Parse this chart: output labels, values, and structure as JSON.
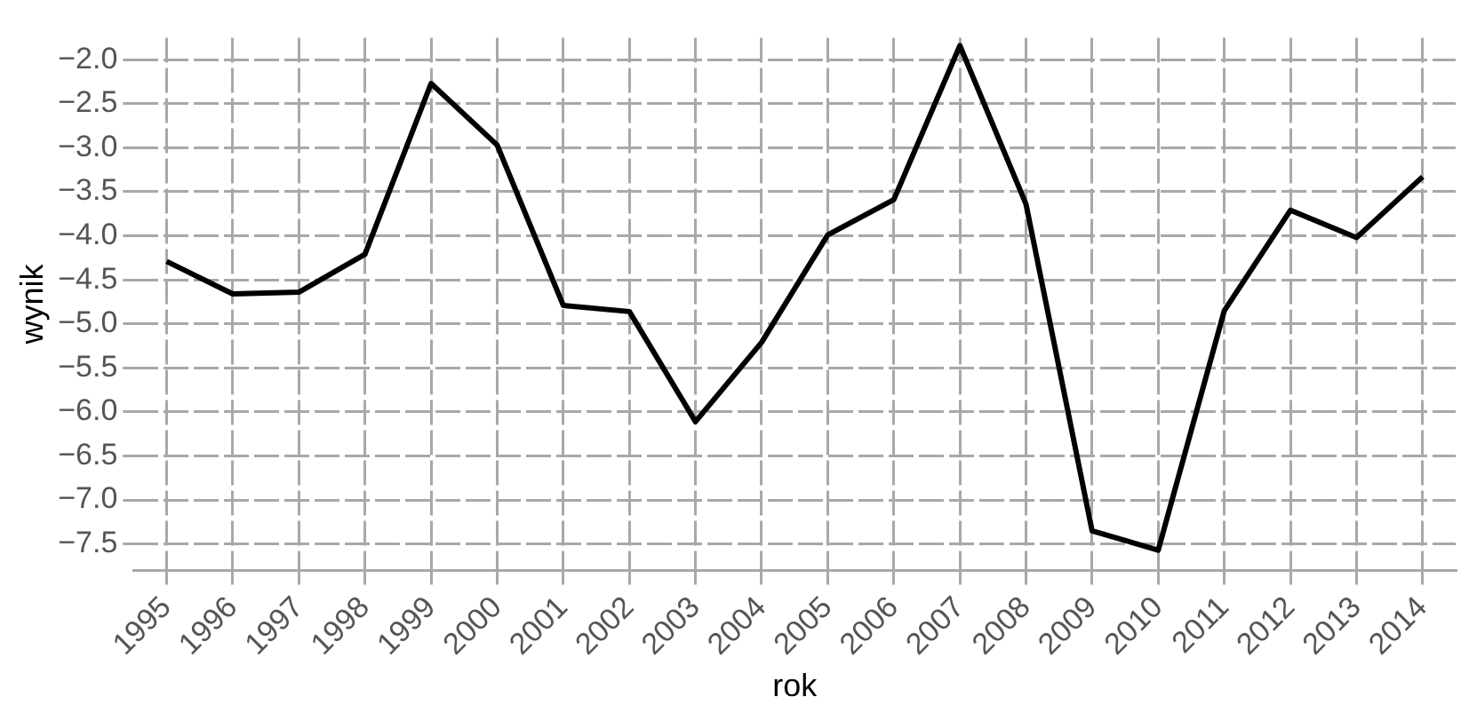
{
  "chart_data": {
    "type": "line",
    "xlabel": "rok",
    "ylabel": "wynik",
    "categories": [
      "1995",
      "1996",
      "1997",
      "1998",
      "1999",
      "2000",
      "2001",
      "2002",
      "2003",
      "2004",
      "2005",
      "2006",
      "2007",
      "2008",
      "2009",
      "2010",
      "2011",
      "2012",
      "2013",
      "2014"
    ],
    "series": [
      {
        "color": "#000000",
        "values": [
          -4.29,
          -4.66,
          -4.64,
          -4.21,
          -2.27,
          -2.97,
          -4.79,
          -4.86,
          -6.11,
          -5.21,
          -3.99,
          -3.59,
          -1.84,
          -3.64,
          -7.35,
          -7.57,
          -4.85,
          -3.71,
          -4.02,
          -3.33
        ]
      }
    ],
    "ylim": [
      -7.8,
      -1.75
    ],
    "yticks": [
      {
        "value": -2.0,
        "label": "−2.0"
      },
      {
        "value": -2.5,
        "label": "−2.5"
      },
      {
        "value": -3.0,
        "label": "−3.0"
      },
      {
        "value": -3.5,
        "label": "−3.5"
      },
      {
        "value": -4.0,
        "label": "−4.0"
      },
      {
        "value": -4.5,
        "label": "−4.5"
      },
      {
        "value": -5.0,
        "label": "−5.0"
      },
      {
        "value": -5.5,
        "label": "−5.5"
      },
      {
        "value": -6.0,
        "label": "−6.0"
      },
      {
        "value": -6.5,
        "label": "−6.5"
      },
      {
        "value": -7.0,
        "label": "−7.0"
      },
      {
        "value": -7.5,
        "label": "−7.5"
      }
    ],
    "grid": true,
    "legend": false,
    "marker": "none",
    "line_style": "solid"
  }
}
